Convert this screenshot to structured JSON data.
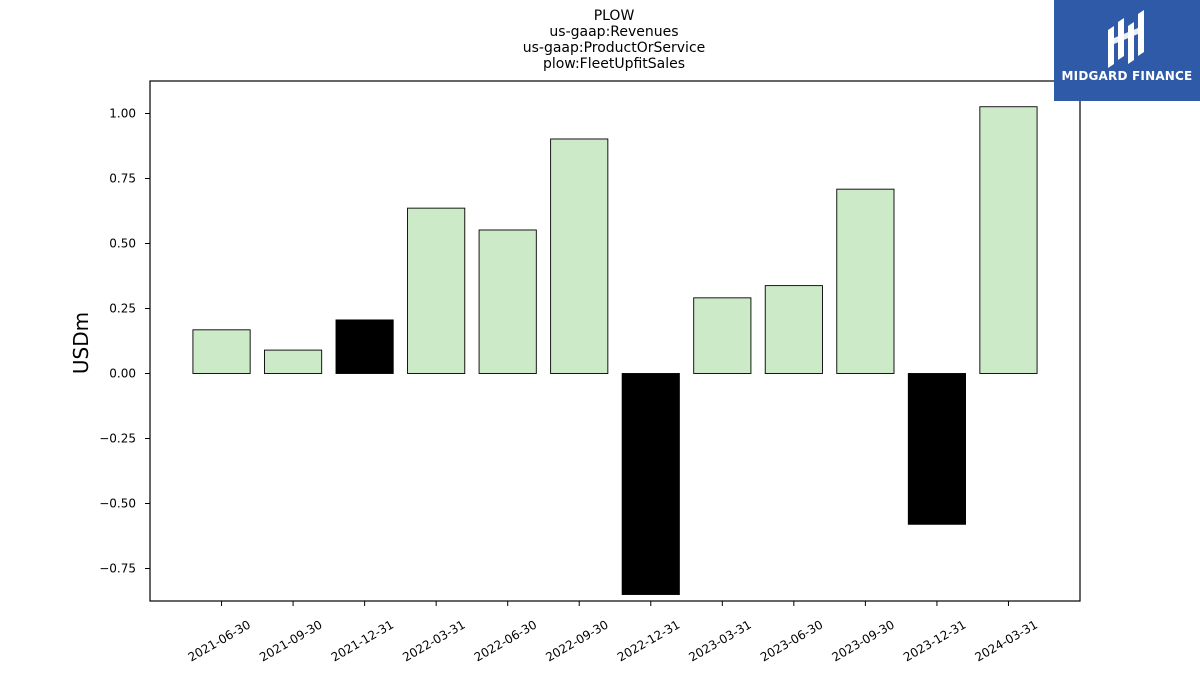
{
  "chart_data": {
    "type": "bar",
    "title_lines": [
      "PLOW",
      "us-gaap:Revenues",
      "us-gaap:ProductOrService",
      "plow:FleetUpfitSales"
    ],
    "xlabel": "",
    "ylabel": "USDm",
    "categories": [
      "2021-06-30",
      "2021-09-30",
      "2021-12-31",
      "2022-03-31",
      "2022-06-30",
      "2022-09-30",
      "2022-12-31",
      "2023-03-31",
      "2023-06-30",
      "2023-09-30",
      "2023-12-31",
      "2024-03-31"
    ],
    "values": [
      0.168,
      0.09,
      0.206,
      0.636,
      0.552,
      0.902,
      -0.85,
      0.291,
      0.338,
      0.709,
      -0.58,
      1.026
    ],
    "bar_colors": [
      "#cdeac8",
      "#cdeac8",
      "#000000",
      "#cdeac8",
      "#cdeac8",
      "#cdeac8",
      "#000000",
      "#cdeac8",
      "#cdeac8",
      "#cdeac8",
      "#000000",
      "#cdeac8"
    ],
    "ylim": [
      -0.875,
      1.125
    ],
    "yticks": [
      -0.75,
      -0.5,
      -0.25,
      0.0,
      0.25,
      0.5,
      0.75,
      1.0
    ],
    "ytick_labels": [
      "−0.75",
      "−0.50",
      "−0.25",
      "0.00",
      "0.25",
      "0.50",
      "0.75",
      "1.00"
    ],
    "grid": false,
    "legend": "none"
  },
  "logo": {
    "text": "MIDGARD FINANCE",
    "color": "#2e5aa8"
  }
}
